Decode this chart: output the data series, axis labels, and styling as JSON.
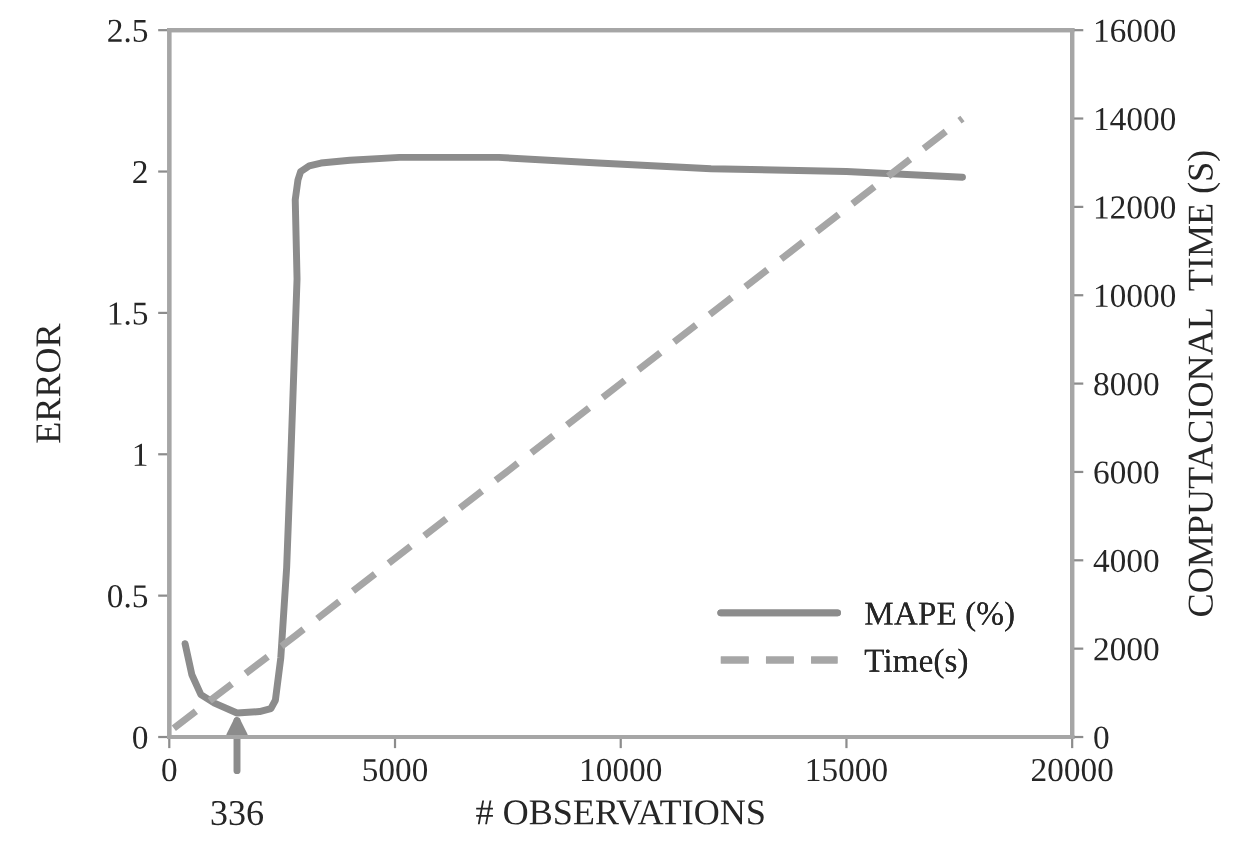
{
  "chart_data": {
    "type": "line",
    "xlabel": "# OBSERVATIONS",
    "ylabel": "ERROR",
    "y2label": "COMPUTACIONAL  TIME (S)",
    "xlim": [
      0,
      20000
    ],
    "xticks": [
      0,
      5000,
      10000,
      15000,
      20000
    ],
    "ylim": [
      0,
      2.5
    ],
    "yticks": [
      0,
      0.5,
      1,
      1.5,
      2,
      2.5
    ],
    "y2lim": [
      0,
      16000
    ],
    "y2ticks": [
      0,
      2000,
      4000,
      6000,
      8000,
      10000,
      12000,
      14000,
      16000
    ],
    "series": [
      {
        "name": "MAPE (%)",
        "color": "#8c8c8c",
        "line_style": "solid",
        "x": [
          350,
          500,
          700,
          1000,
          1500,
          2000,
          2250,
          2350,
          2470,
          2600,
          2690,
          2830,
          2790,
          2850,
          2910,
          3100,
          3360,
          4000,
          5100,
          6500,
          7300,
          9500,
          12000,
          15000,
          17570
        ],
        "values": [
          0.33,
          0.22,
          0.15,
          0.12,
          0.085,
          0.09,
          0.1,
          0.13,
          0.28,
          0.6,
          0.98,
          1.62,
          1.9,
          1.97,
          2.0,
          2.02,
          2.03,
          2.04,
          2.05,
          2.05,
          2.05,
          2.03,
          2.01,
          2.0,
          1.98
        ]
      },
      {
        "name": "Time(s)",
        "color": "#a6a6a6",
        "line_style": "dashed",
        "axis": "y2",
        "x": [
          100,
          2800,
          17570
        ],
        "values": [
          200,
          2300,
          14000
        ]
      }
    ],
    "annotations": [
      {
        "text": "336",
        "x": 1500,
        "y": 0.085
      }
    ],
    "legend": "bottom right",
    "grid": false
  }
}
